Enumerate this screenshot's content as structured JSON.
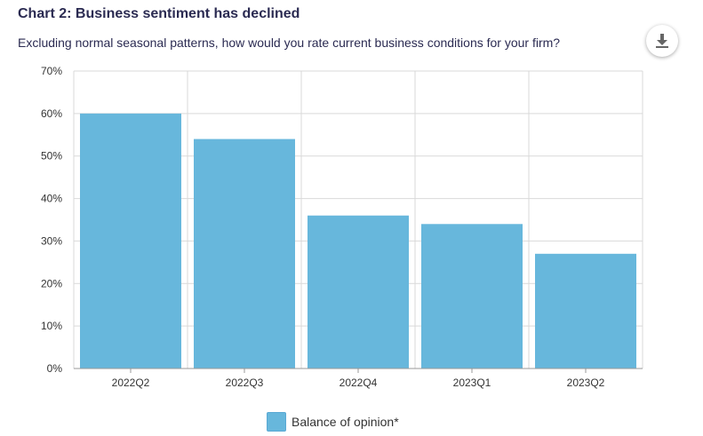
{
  "header": {
    "title": "Chart 2: Business sentiment has declined",
    "subtitle": "Excluding normal seasonal patterns, how would you rate current business conditions for your firm?"
  },
  "toolbar": {
    "download_icon": "download-icon"
  },
  "colors": {
    "bar": "#67b7dc",
    "grid": "#d9d9d9",
    "title": "#2b2b52"
  },
  "chart_data": {
    "type": "bar",
    "title": "Chart 2: Business sentiment has declined",
    "subtitle": "Excluding normal seasonal patterns, how would you rate current business conditions for your firm?",
    "categories": [
      "2022Q2",
      "2022Q3",
      "2022Q4",
      "2023Q1",
      "2023Q2"
    ],
    "series": [
      {
        "name": "Balance of opinion*",
        "values": [
          60,
          54,
          36,
          34,
          27
        ]
      }
    ],
    "ylim": [
      0,
      70
    ],
    "yticks": [
      "0%",
      "10%",
      "20%",
      "30%",
      "40%",
      "50%",
      "60%",
      "70%"
    ],
    "grid": true,
    "legend": "bottom-center"
  }
}
